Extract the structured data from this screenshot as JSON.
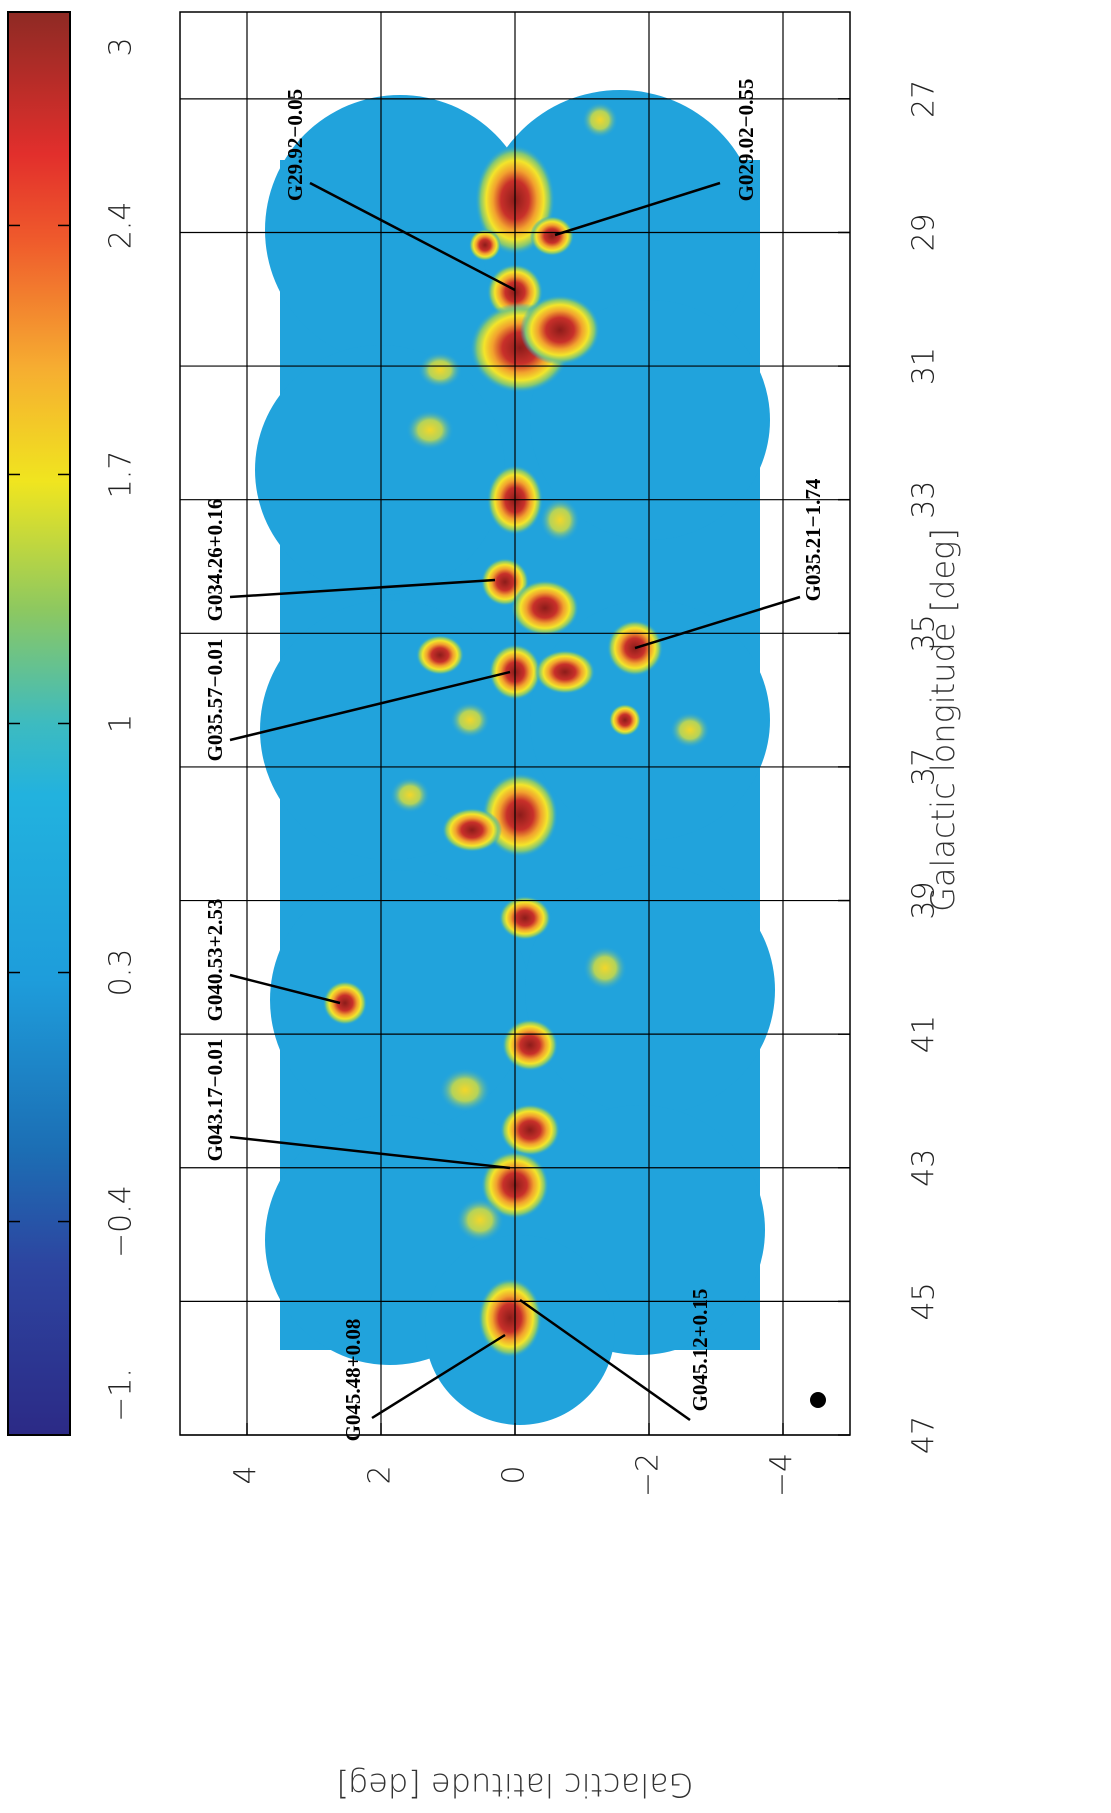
{
  "chart_data": {
    "type": "heatmap",
    "xlabel": "Galactic longitude [deg]",
    "ylabel": "Galactic latitude [deg]",
    "xlim": [
      25.7,
      47
    ],
    "xticks": [
      27,
      29,
      31,
      33,
      35,
      37,
      39,
      41,
      43,
      45,
      47
    ],
    "ylim": [
      5,
      -5
    ],
    "yticks": [
      4,
      2,
      0,
      {
        "value": -2,
        "label": "−2"
      },
      {
        "value": -4,
        "label": "−4"
      }
    ],
    "grid": true,
    "colorbar": {
      "lim": [
        -1,
        3
      ],
      "ticks": [
        {
          "value": -1,
          "label": "−1."
        },
        {
          "value": -0.4,
          "label": "−0.4"
        },
        0.3,
        1,
        1.7,
        2.4,
        3
      ]
    },
    "annotations": [
      {
        "text": "G29.92−0.05"
      },
      {
        "text": "G029.02−0.55"
      },
      {
        "text": "G034.26+0.16"
      },
      {
        "text": "G035.21−1.74"
      },
      {
        "text": "G035.57−0.01"
      },
      {
        "text": "G040.53+2.53"
      },
      {
        "text": "G043.17−0.01"
      },
      {
        "text": "G045.48+0.08"
      },
      {
        "text": "G045.12+0.15"
      }
    ]
  }
}
